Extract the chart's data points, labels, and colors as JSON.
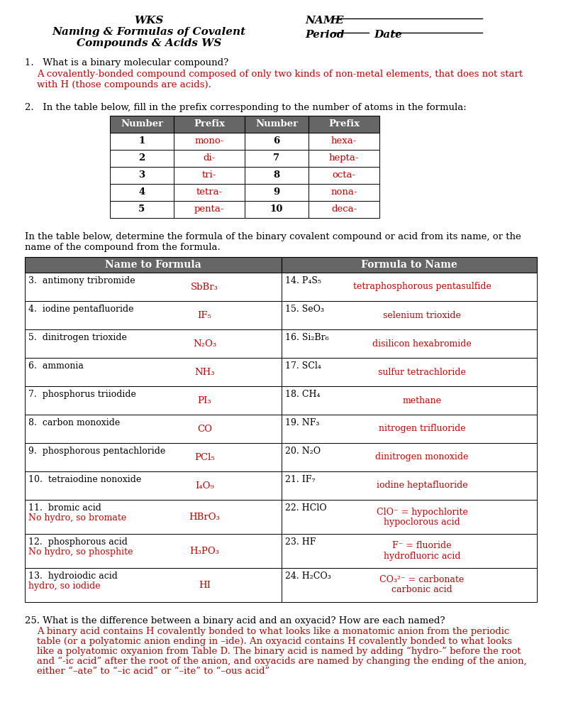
{
  "bg_color": "#ffffff",
  "red": "#cc0000",
  "black": "#000000",
  "header_bg": "#666666",
  "header_fg": "#ffffff",
  "q1_question": "1.   What is a binary molecular compound?",
  "q1_answer": "A covalently-bonded compound composed of only two kinds of non-metal elements, that does not start\nwith H (those compounds are acids).",
  "q2_instruction": "2.   In the table below, fill in the prefix corresponding to the number of atoms in the formula:",
  "prefix_table": {
    "headers": [
      "Number",
      "Prefix",
      "Number",
      "Prefix"
    ],
    "rows": [
      [
        "1",
        "mono-",
        "6",
        "hexa-"
      ],
      [
        "2",
        "di-",
        "7",
        "hepta-"
      ],
      [
        "3",
        "tri-",
        "8",
        "octa-"
      ],
      [
        "4",
        "tetra-",
        "9",
        "nona-"
      ],
      [
        "5",
        "penta-",
        "10",
        "deca-"
      ]
    ]
  },
  "q3_instruction": "In the table below, determine the formula of the binary covalent compound or acid from its name, or the\nname of the compound from the formula.",
  "main_table_rows": [
    {
      "left_num": "3.",
      "left_name": "antimony tribromide",
      "left_name2": "",
      "left_ans": "SbBr₃",
      "right_num": "14.",
      "right_formula": "P₄S₅",
      "right_ans": "tetraphosphorous pentasulfide",
      "right_ans2": "",
      "tall": false
    },
    {
      "left_num": "4.",
      "left_name": "iodine pentafluoride",
      "left_name2": "",
      "left_ans": "IF₅",
      "right_num": "15.",
      "right_formula": "SeO₃",
      "right_ans": "selenium trioxide",
      "right_ans2": "",
      "tall": false
    },
    {
      "left_num": "5.",
      "left_name": "dinitrogen trioxide",
      "left_name2": "",
      "left_ans": "N₂O₃",
      "right_num": "16.",
      "right_formula": "Si₂Br₆",
      "right_ans": "disilicon hexabromide",
      "right_ans2": "",
      "tall": false
    },
    {
      "left_num": "6.",
      "left_name": "ammonia",
      "left_name2": "",
      "left_ans": "NH₃",
      "right_num": "17.",
      "right_formula": "SCl₄",
      "right_ans": "sulfur tetrachloride",
      "right_ans2": "",
      "tall": false
    },
    {
      "left_num": "7.",
      "left_name": "phosphorus triiodide",
      "left_name2": "",
      "left_ans": "PI₃",
      "right_num": "18.",
      "right_formula": "CH₄",
      "right_ans": "methane",
      "right_ans2": "",
      "tall": false
    },
    {
      "left_num": "8.",
      "left_name": "carbon monoxide",
      "left_name2": "",
      "left_ans": "CO",
      "right_num": "19.",
      "right_formula": "NF₃",
      "right_ans": "nitrogen trifluoride",
      "right_ans2": "",
      "tall": false
    },
    {
      "left_num": "9.",
      "left_name": "phosphorous pentachloride",
      "left_name2": "",
      "left_ans": "PCl₅",
      "right_num": "20.",
      "right_formula": "N₂O",
      "right_ans": "dinitrogen monoxide",
      "right_ans2": "",
      "tall": false
    },
    {
      "left_num": "10.",
      "left_name": "tetraiodine nonoxide",
      "left_name2": "",
      "left_ans": "I₄O₉",
      "right_num": "21.",
      "right_formula": "IF₇",
      "right_ans": "iodine heptafluoride",
      "right_ans2": "",
      "tall": false
    },
    {
      "left_num": "11.",
      "left_name": "bromic acid",
      "left_name2": "No hydro, so bromate",
      "left_ans": "HBrO₃",
      "right_num": "22.",
      "right_formula": "HClO",
      "right_ans": "ClO⁻ = hypochlorite",
      "right_ans2": "hypoclorous acid",
      "tall": true
    },
    {
      "left_num": "12.",
      "left_name": "phosphorous acid",
      "left_name2": "No hydro, so phosphite",
      "left_ans": "H₃PO₃",
      "right_num": "23.",
      "right_formula": "HF",
      "right_ans": "F⁻ = fluoride",
      "right_ans2": "hydrofluoric acid",
      "tall": true
    },
    {
      "left_num": "13.",
      "left_name": "hydroiodic acid",
      "left_name2": "hydro, so iodide",
      "left_ans": "HI",
      "right_num": "24.",
      "right_formula": "H₂CO₃",
      "right_ans": "CO₃²⁻ = carbonate",
      "right_ans2": "carbonic acid",
      "tall": true
    }
  ],
  "q25_question": "25. What is the difference between a binary acid and an oxyacid? How are each named?",
  "q25_answer_line1": "A binary acid contains H covalently bonded to what looks like a monatomic anion from the periodic",
  "q25_answer_line2": "table (or a polyatomic anion ending in –ide). An oxyacid contains H covalently bonded to what looks",
  "q25_answer_line3": "like a polyatomic oxyanion from Table D. The binary acid is named by adding “hydro-” before the root",
  "q25_answer_line4": "and “-ic acid” after the root of the anion, and oxyacids are named by changing the ending of the anion,",
  "q25_answer_line5": "either “–ate” to “–ic acid” or “–ite” to “–ous acid”"
}
